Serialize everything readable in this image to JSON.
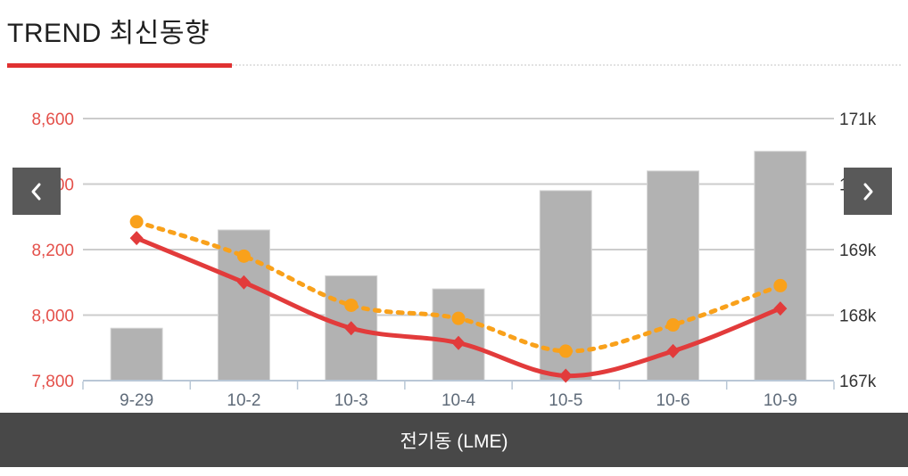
{
  "header": {
    "title": "TREND 최신동향"
  },
  "carousel": {
    "prev_icon": "chevron-left",
    "next_icon": "chevron-right"
  },
  "footer": {
    "label": "전기동 (LME)"
  },
  "colors": {
    "title_accent": "#e03131",
    "grid": "#cccccc",
    "axis_line": "#b9c7d6",
    "x_label": "#5f6b79",
    "left_axis_label": "#e4504a",
    "right_axis_label": "#333333",
    "nav_button_bg": "#595959",
    "footer_bg": "#484848"
  },
  "chart_data": {
    "type": "combo",
    "categories": [
      "9-29",
      "10-2",
      "10-3",
      "10-4",
      "10-5",
      "10-6",
      "10-9"
    ],
    "series": [
      {
        "id": "volume-bars",
        "type": "bar",
        "axis": "right",
        "color": "#b2b2b2",
        "values": [
          167.8,
          169.3,
          168.6,
          168.4,
          169.9,
          170.2,
          170.5
        ]
      },
      {
        "id": "dotted-price-line",
        "type": "line",
        "axis": "left",
        "line_style": "dotted",
        "marker": "circle",
        "color": "#f9a11b",
        "values": [
          8285,
          8180,
          8030,
          7990,
          7890,
          7970,
          8090
        ]
      },
      {
        "id": "solid-price-line",
        "type": "line",
        "axis": "left",
        "line_style": "solid",
        "marker": "diamond",
        "color": "#e23b3b",
        "values": [
          8235,
          8100,
          7960,
          7915,
          7815,
          7890,
          8020
        ]
      }
    ],
    "left_axis": {
      "min": 7800,
      "max": 8600,
      "tick_step": 200,
      "tick_labels": [
        "8,600",
        "8,400",
        "8,200",
        "8,000",
        "7,800"
      ]
    },
    "right_axis": {
      "min": 167,
      "max": 171,
      "tick_step": 1,
      "tick_labels": [
        "171k",
        "170k",
        "169k",
        "168k",
        "167k"
      ]
    },
    "grid": true,
    "legend": false
  }
}
